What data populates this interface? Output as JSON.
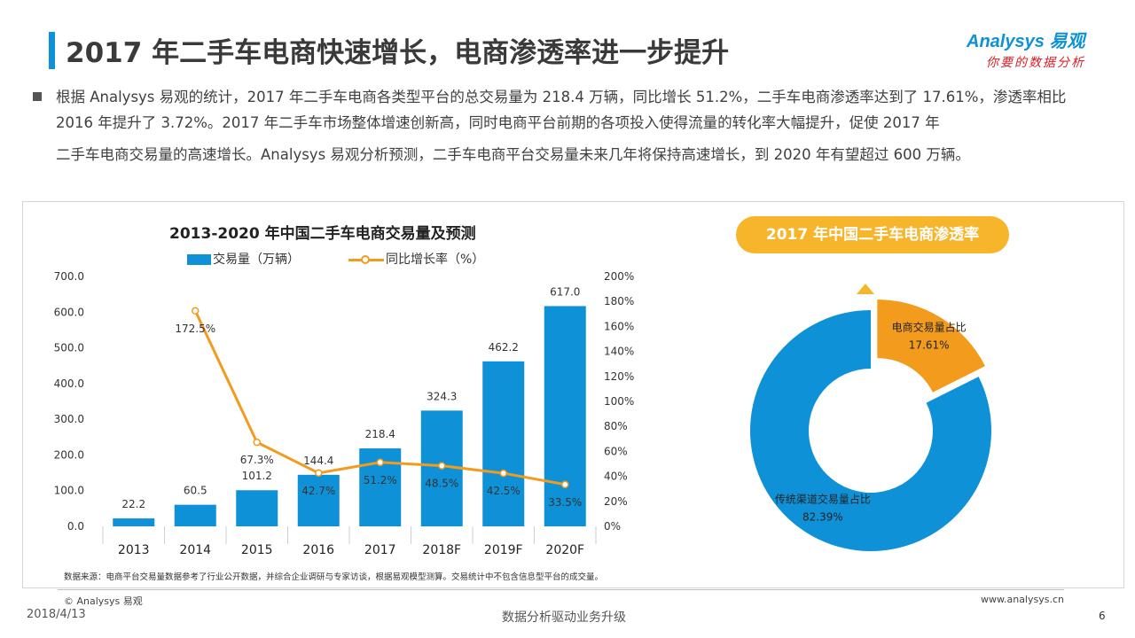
{
  "header": {
    "title": "2017 年二手车电商快速增长，电商渗透率进一步提升",
    "logo_main": "Analysys 易观",
    "logo_sub": "你要的数据分析"
  },
  "intro": {
    "line1": "根据 Analysys 易观的统计，2017 年二手车电商各类型平台的总交易量为 218.4 万辆，同比增长 51.2%，二手车电商渗透率达到了 17.61%，渗透率相比 2016 年提升了 3.72%。2017 年二手车市场整体增速创新高，同时电商平台前期的各项投入使得流量的转化率大幅提升，促使 2017 年",
    "line2": "二手车电商交易量的高速增长。Analysys 易观分析预测，二手车电商平台交易量未来几年将保持高速增长，到 2020 年有望超过 600 万辆。"
  },
  "chart_data": [
    {
      "type": "bar",
      "title": "2013-2020 年中国二手车电商交易量及预测",
      "categories": [
        "2013",
        "2014",
        "2015",
        "2016",
        "2017",
        "2018F",
        "2019F",
        "2020F"
      ],
      "series": [
        {
          "name": "交易量（万辆）",
          "type": "bar",
          "axis": "left",
          "values": [
            22.2,
            60.5,
            101.2,
            144.4,
            218.4,
            324.3,
            462.2,
            617.0
          ],
          "labels": [
            "22.2",
            "60.5",
            "101.2",
            "144.4",
            "218.4",
            "324.3",
            "462.2",
            "617.0"
          ]
        },
        {
          "name": "同比增长率（%）",
          "type": "line",
          "axis": "right",
          "values": [
            null,
            172.5,
            67.3,
            42.7,
            51.2,
            48.5,
            42.5,
            33.5
          ],
          "labels": [
            "",
            "172.5%",
            "67.3%",
            "42.7%",
            "51.2%",
            "48.5%",
            "42.5%",
            "33.5%"
          ]
        }
      ],
      "ylim_left": [
        0,
        700
      ],
      "yticks_left": [
        "0.0",
        "100.0",
        "200.0",
        "300.0",
        "400.0",
        "500.0",
        "600.0",
        "700.0"
      ],
      "ylim_right": [
        0,
        200
      ],
      "yticks_right": [
        "0%",
        "20%",
        "40%",
        "60%",
        "80%",
        "100%",
        "120%",
        "140%",
        "160%",
        "180%",
        "200%"
      ],
      "grid": false,
      "legend": "top",
      "colors": {
        "bar": "#0f91d8",
        "line": "#f29b1d"
      }
    },
    {
      "type": "pie",
      "title": "2017 年中国二手车电商渗透率",
      "slices": [
        {
          "name": "电商交易量占比",
          "value": 17.61,
          "label": "17.61%",
          "color": "#f29b1d"
        },
        {
          "name": "传统渠道交易量占比",
          "value": 82.39,
          "label": "82.39%",
          "color": "#0f91d8"
        }
      ],
      "donut": true,
      "colors": {
        "accent": "#f7b52b"
      }
    }
  ],
  "footer": {
    "source": "数据来源：电商平台交易量数据参考了行业公开数据，并综合企业调研与专家访谈，根据易观模型测算。交易统计中不包含信息型平台的成交量。",
    "copyright": "© Analysys 易观",
    "site": "www.analysys.cn",
    "date": "2018/4/13",
    "slogan": "数据分析驱动业务升级",
    "page": "6"
  }
}
